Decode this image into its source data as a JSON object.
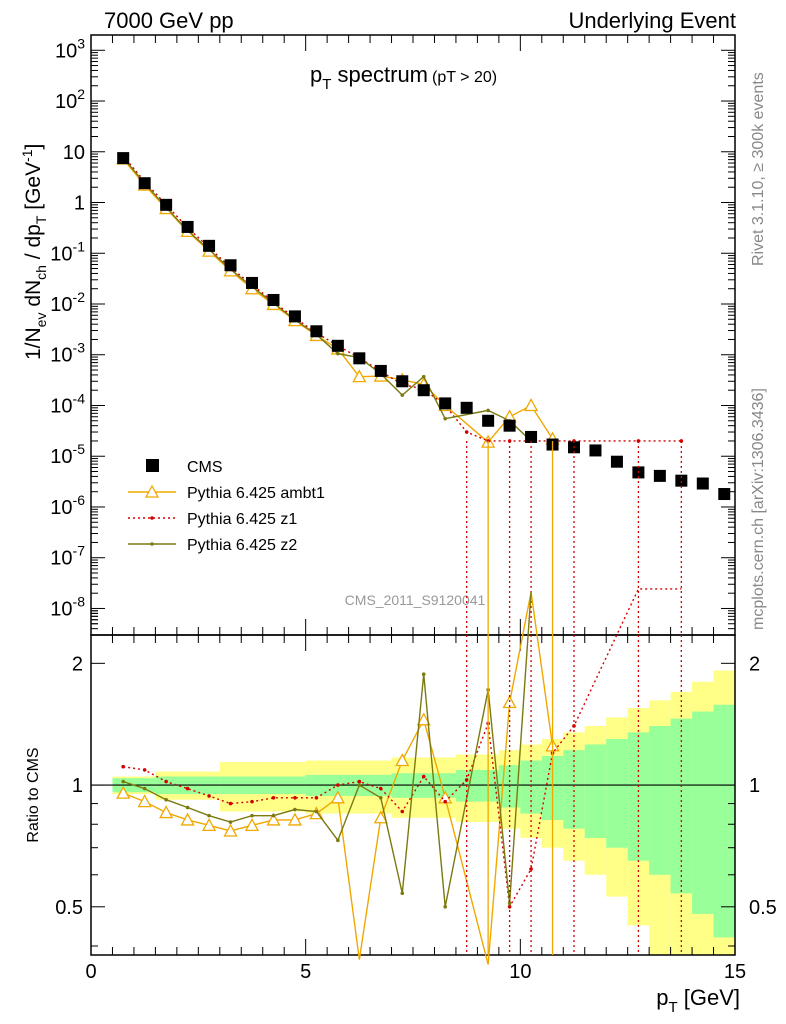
{
  "header": {
    "left": "7000 GeV pp",
    "right": "Underlying Event"
  },
  "side_text": {
    "rivet": "Rivet 3.1.10, ≥ 300k events",
    "mcplots": "mcplots.cern.ch [arXiv:1306.3436]"
  },
  "watermark": "CMS_2011_S9120041",
  "title": {
    "main": "p",
    "main_sub": "T",
    "main_rest": " spectrum",
    "cut": "(pT > 20)"
  },
  "axes": {
    "ylabel_main": "1/N",
    "ylabel_ratio": "Ratio to CMS",
    "xlabel": "p",
    "xlabel_sub": "T",
    "xlabel_unit": " [GeV]"
  },
  "chart_data": {
    "type": "scatter",
    "x_range": [
      0,
      15
    ],
    "main_y_log": true,
    "main_y_range": [
      3e-09,
      2000
    ],
    "ratio_y_log": true,
    "ratio_y_range": [
      0.38,
      2.35
    ],
    "main_y_ticks": [
      "10^{3}",
      "10^{2}",
      "10",
      "1",
      "10^{-1}",
      "10^{-2}",
      "10^{-3}",
      "10^{-4}",
      "10^{-5}",
      "10^{-6}",
      "10^{-7}",
      "10^{-8}"
    ],
    "x_ticks": [
      "0",
      "5",
      "10",
      "15"
    ],
    "ratio_ticks": [
      "0.5",
      "1",
      "2"
    ],
    "legend_position": "bottom-left",
    "series": [
      {
        "name": "CMS",
        "color": "#000000",
        "marker": "square",
        "x": [
          0.75,
          1.25,
          1.75,
          2.25,
          2.75,
          3.25,
          3.75,
          4.25,
          4.75,
          5.25,
          5.75,
          6.25,
          6.75,
          7.25,
          7.75,
          8.25,
          8.75,
          9.25,
          9.75,
          10.25,
          10.75,
          11.25,
          11.75,
          12.25,
          12.75,
          13.25,
          13.75,
          14.25,
          14.75
        ],
        "y": [
          7.5,
          2.4,
          0.9,
          0.33,
          0.14,
          0.058,
          0.026,
          0.012,
          0.0057,
          0.0029,
          0.0015,
          0.00085,
          0.00048,
          0.0003,
          0.0002,
          0.00011,
          9e-05,
          5e-05,
          4e-05,
          2.4e-05,
          1.7e-05,
          1.5e-05,
          1.3e-05,
          7.8e-06,
          4.8e-06,
          4.1e-06,
          3.3e-06,
          2.9e-06,
          1.8e-06
        ]
      },
      {
        "name": "Pythia 6.425 ambt1",
        "color": "#f0a800",
        "marker": "triangle",
        "x": [
          0.75,
          1.25,
          1.75,
          2.25,
          2.75,
          3.25,
          3.75,
          4.25,
          4.75,
          5.25,
          5.75,
          6.25,
          6.75,
          7.25,
          7.75,
          8.25,
          9.25,
          9.75,
          10.25,
          10.75
        ],
        "y": [
          7.2,
          2.2,
          0.76,
          0.27,
          0.11,
          0.045,
          0.02,
          0.0098,
          0.0047,
          0.0024,
          0.0013,
          0.00037,
          0.00038,
          0.00032,
          0.00026,
          0.0001,
          1.9e-05,
          6e-05,
          0.0001,
          2.2e-05
        ],
        "ratio": [
          0.955,
          0.91,
          0.855,
          0.82,
          0.795,
          0.77,
          0.795,
          0.82,
          0.82,
          0.85,
          0.93,
          0.37,
          0.83,
          1.15,
          1.45,
          0.93,
          0.36,
          1.6,
          3.0,
          1.25
        ]
      },
      {
        "name": "Pythia 6.425 z1",
        "color": "#d40000",
        "marker": "dot",
        "x": [
          0.75,
          1.25,
          1.75,
          2.25,
          2.75,
          3.25,
          3.75,
          4.25,
          4.75,
          5.25,
          5.75,
          6.25,
          6.75,
          7.25,
          7.75,
          8.25,
          8.75,
          9.25,
          9.75,
          10.25,
          10.75,
          11.25,
          12.75,
          13.75
        ],
        "y": [
          8.3,
          2.6,
          0.9,
          0.32,
          0.13,
          0.052,
          0.024,
          0.011,
          0.0053,
          0.0027,
          0.0015,
          0.00087,
          0.00047,
          0.00026,
          0.00021,
          0.0001,
          3e-05,
          2e-05,
          2e-05,
          2e-05,
          2e-05,
          2e-05,
          2e-05,
          2e-05
        ],
        "ratio": [
          1.11,
          1.09,
          1.02,
          0.98,
          0.94,
          0.9,
          0.91,
          0.93,
          0.93,
          0.93,
          1.0,
          1.02,
          0.98,
          0.86,
          1.05,
          0.91,
          1.03,
          1.42,
          0.5,
          0.62,
          1.2,
          1.4,
          3.5,
          6.0
        ]
      },
      {
        "name": "Pythia 6.425 z2",
        "color": "#7a7a10",
        "marker": "dot",
        "x": [
          0.75,
          1.25,
          1.75,
          2.25,
          2.75,
          3.25,
          3.75,
          4.25,
          4.75,
          5.25,
          5.75,
          6.25,
          6.75,
          7.25,
          7.75,
          8.25,
          9.25,
          9.75,
          10.25
        ],
        "y": [
          7.6,
          2.4,
          0.8,
          0.28,
          0.118,
          0.048,
          0.022,
          0.0104,
          0.0049,
          0.0025,
          0.00105,
          0.00088,
          0.00042,
          0.00016,
          0.00037,
          5.5e-05,
          8e-05,
          5e-05,
          2e-05
        ],
        "ratio": [
          1.02,
          0.98,
          0.92,
          0.88,
          0.84,
          0.81,
          0.84,
          0.84,
          0.87,
          0.86,
          0.73,
          1.0,
          0.93,
          0.54,
          1.88,
          0.5,
          1.72,
          0.51,
          3.0
        ]
      }
    ],
    "band_inner": [
      [
        0.5,
        1.5,
        0.04
      ],
      [
        1.5,
        3.0,
        0.05
      ],
      [
        3.0,
        5.0,
        0.05
      ],
      [
        5.0,
        7.0,
        0.06
      ],
      [
        7.0,
        8.5,
        0.07
      ],
      [
        8.5,
        9.5,
        0.09
      ],
      [
        9.5,
        10.0,
        0.12
      ],
      [
        10.0,
        10.5,
        0.15
      ],
      [
        10.5,
        11.0,
        0.18
      ],
      [
        11.0,
        11.5,
        0.22
      ],
      [
        11.5,
        12.0,
        0.26
      ],
      [
        12.0,
        12.5,
        0.3
      ],
      [
        12.5,
        13.0,
        0.35
      ],
      [
        13.0,
        13.5,
        0.4
      ],
      [
        13.5,
        14.0,
        0.46
      ],
      [
        14.0,
        14.5,
        0.52
      ],
      [
        14.5,
        15.0,
        0.58
      ]
    ],
    "band_outer": [
      [
        0.5,
        1.5,
        0.05
      ],
      [
        1.5,
        3.0,
        0.08
      ],
      [
        3.0,
        5.0,
        0.14
      ],
      [
        5.0,
        7.0,
        0.15
      ],
      [
        7.0,
        8.5,
        0.17
      ],
      [
        8.5,
        9.5,
        0.19
      ],
      [
        9.5,
        10.0,
        0.22
      ],
      [
        10.0,
        10.5,
        0.26
      ],
      [
        10.5,
        11.0,
        0.3
      ],
      [
        11.0,
        11.5,
        0.35
      ],
      [
        11.5,
        12.0,
        0.4
      ],
      [
        12.0,
        12.5,
        0.47
      ],
      [
        12.5,
        13.0,
        0.55
      ],
      [
        13.0,
        13.5,
        0.62
      ],
      [
        13.5,
        14.0,
        0.7
      ],
      [
        14.0,
        14.5,
        0.8
      ],
      [
        14.5,
        15.0,
        0.92
      ]
    ]
  }
}
